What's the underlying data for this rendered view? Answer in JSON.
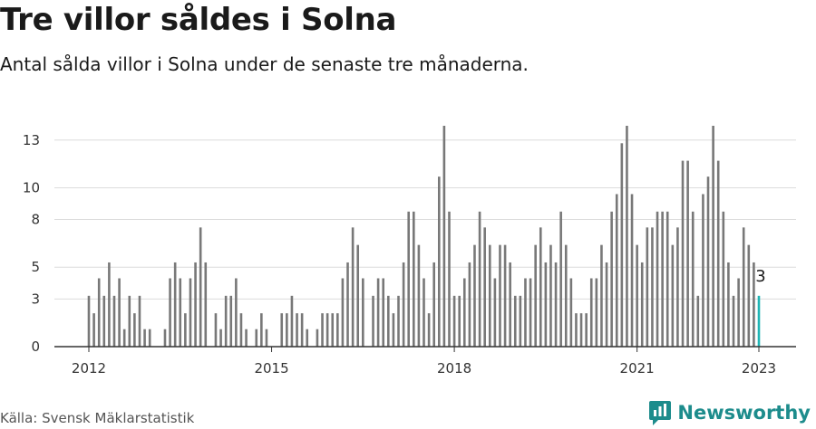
{
  "header": {
    "title": "Tre villor såldes i Solna",
    "subtitle": "Antal sålda villor i Solna under de senaste tre månaderna."
  },
  "footer": {
    "source": "Källa: Svensk Mäklarstatistik",
    "brand": "Newsworthy"
  },
  "colors": {
    "bar": "#787878",
    "highlight": "#1fb5b5",
    "grid": "#dcdcdc",
    "brand": "#1d8c8c"
  },
  "chart_data": {
    "type": "bar",
    "title": "Tre villor såldes i Solna",
    "subtitle": "Antal sålda villor i Solna under de senaste tre månaderna.",
    "xlabel": "",
    "ylabel": "",
    "x_ticks": [
      "2012",
      "2015",
      "2018",
      "2021",
      "2023"
    ],
    "y_ticks": [
      0,
      3,
      5,
      8,
      10,
      13
    ],
    "ylim": [
      0,
      13.5
    ],
    "grid": true,
    "highlight_label": "3",
    "series": [
      {
        "categories": [
          "2012-01",
          "2012-02",
          "2012-03",
          "2012-04",
          "2012-05",
          "2012-06",
          "2012-07",
          "2012-08",
          "2012-09",
          "2012-10",
          "2012-11",
          "2012-12",
          "2013-01",
          "2013-02",
          "2013-03",
          "2013-04",
          "2013-05",
          "2013-06",
          "2013-07",
          "2013-08",
          "2013-09",
          "2013-10",
          "2013-11",
          "2013-12",
          "2014-01",
          "2014-02",
          "2014-03",
          "2014-04",
          "2014-05",
          "2014-06",
          "2014-07",
          "2014-08",
          "2014-09",
          "2014-10",
          "2014-11",
          "2014-12",
          "2015-01",
          "2015-02",
          "2015-03",
          "2015-04",
          "2015-05",
          "2015-06",
          "2015-07",
          "2015-08",
          "2015-09",
          "2015-10",
          "2015-11",
          "2015-12",
          "2016-01",
          "2016-02",
          "2016-03",
          "2016-04",
          "2016-05",
          "2016-06",
          "2016-07",
          "2016-08",
          "2016-09",
          "2016-10",
          "2016-11",
          "2016-12",
          "2017-01",
          "2017-02",
          "2017-03",
          "2017-04",
          "2017-05",
          "2017-06",
          "2017-07",
          "2017-08",
          "2017-09",
          "2017-10",
          "2017-11",
          "2017-12",
          "2018-01",
          "2018-02",
          "2018-03",
          "2018-04",
          "2018-05",
          "2018-06",
          "2018-07",
          "2018-08",
          "2018-09",
          "2018-10",
          "2018-11",
          "2018-12",
          "2019-01",
          "2019-02",
          "2019-03",
          "2019-04",
          "2019-05",
          "2019-06",
          "2019-07",
          "2019-08",
          "2019-09",
          "2019-10",
          "2019-11",
          "2019-12",
          "2020-01",
          "2020-02",
          "2020-03",
          "2020-04",
          "2020-05",
          "2020-06",
          "2020-07",
          "2020-08",
          "2020-09",
          "2020-10",
          "2020-11",
          "2020-12",
          "2021-01",
          "2021-02",
          "2021-03",
          "2021-04",
          "2021-05",
          "2021-06",
          "2021-07",
          "2021-08",
          "2021-09",
          "2021-10",
          "2021-11",
          "2021-12",
          "2022-01",
          "2022-02",
          "2022-03",
          "2022-04",
          "2022-05",
          "2022-06",
          "2022-07",
          "2022-08",
          "2022-09",
          "2022-10",
          "2022-11",
          "2022-12",
          "2023-01"
        ],
        "values": [
          3.2,
          2.1,
          4.3,
          3.2,
          5.3,
          3.2,
          4.3,
          1.1,
          3.2,
          2.1,
          3.2,
          1.1,
          1.1,
          0,
          0,
          1.1,
          4.3,
          5.3,
          4.3,
          2.1,
          4.3,
          5.3,
          7.5,
          5.3,
          0,
          2.1,
          1.1,
          3.2,
          3.2,
          4.3,
          2.1,
          1.1,
          0,
          1.1,
          2.1,
          1.1,
          0,
          0,
          2.1,
          2.1,
          3.2,
          2.1,
          2.1,
          1.1,
          0,
          1.1,
          2.1,
          2.1,
          2.1,
          2.1,
          4.3,
          5.3,
          7.5,
          6.4,
          4.3,
          0,
          3.2,
          4.3,
          4.3,
          3.2,
          2.1,
          3.2,
          5.3,
          8.5,
          8.5,
          6.4,
          4.3,
          2.1,
          5.3,
          10.7,
          13.9,
          8.5,
          3.2,
          3.2,
          4.3,
          5.3,
          6.4,
          8.5,
          7.5,
          6.4,
          4.3,
          6.4,
          6.4,
          5.3,
          3.2,
          3.2,
          4.3,
          4.3,
          6.4,
          7.5,
          5.3,
          6.4,
          5.3,
          8.5,
          6.4,
          4.3,
          2.1,
          2.1,
          2.1,
          4.3,
          4.3,
          6.4,
          5.3,
          8.5,
          9.6,
          12.8,
          13.9,
          9.6,
          6.4,
          5.3,
          7.5,
          7.5,
          8.5,
          8.5,
          8.5,
          6.4,
          7.5,
          11.7,
          11.7,
          8.5,
          3.2,
          9.6,
          10.7,
          13.9,
          11.7,
          8.5,
          5.3,
          3.2,
          4.3,
          7.5,
          6.4,
          5.3,
          3.2
        ]
      }
    ]
  }
}
